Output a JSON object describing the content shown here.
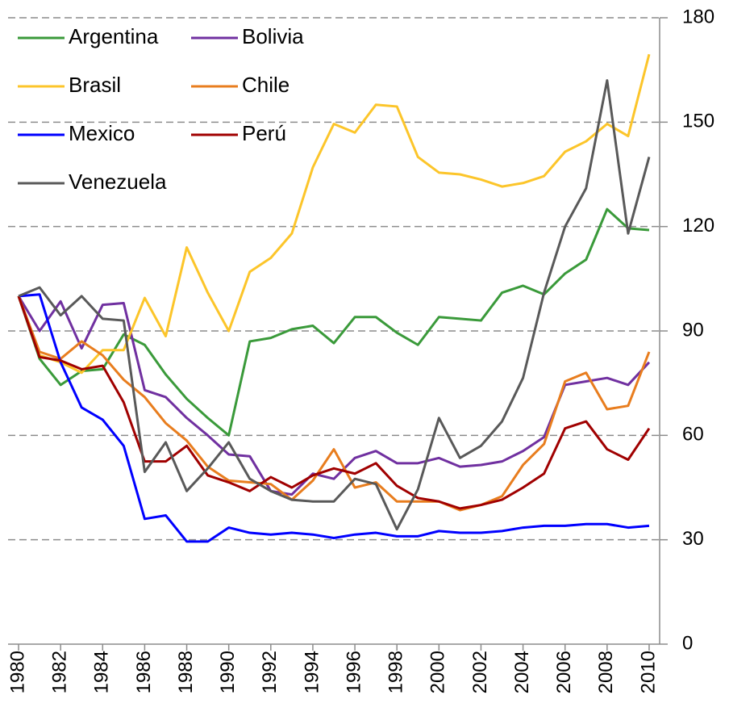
{
  "chart_data": {
    "type": "line",
    "x": [
      1980,
      1981,
      1982,
      1983,
      1984,
      1985,
      1986,
      1987,
      1988,
      1989,
      1990,
      1991,
      1992,
      1993,
      1994,
      1995,
      1996,
      1997,
      1998,
      1999,
      2000,
      2001,
      2002,
      2003,
      2004,
      2005,
      2006,
      2007,
      2008,
      2009,
      2010
    ],
    "xlim": [
      1979.5,
      2010.5
    ],
    "xticks": [
      1980,
      1982,
      1984,
      1986,
      1988,
      1990,
      1992,
      1994,
      1996,
      1998,
      2000,
      2002,
      2004,
      2006,
      2008,
      2010
    ],
    "ylim": [
      0,
      180
    ],
    "yticks": [
      0,
      30,
      60,
      90,
      120,
      150,
      180
    ],
    "grid": true,
    "y_axis_side": "right",
    "legend": "upper left",
    "series": [
      {
        "name": "Argentina",
        "color": "#3a9a3a",
        "values": [
          100,
          82,
          74.5,
          78.5,
          79,
          89,
          86,
          77.5,
          70.5,
          65,
          60,
          87,
          88,
          90.5,
          91.5,
          86.5,
          94,
          94,
          89.5,
          86,
          94,
          93.5,
          93,
          101,
          103,
          100.5,
          106.5,
          110.5,
          125,
          119.5,
          119
        ]
      },
      {
        "name": "Bolivia",
        "color": "#7030a0",
        "values": [
          100,
          90,
          98.5,
          85,
          97.5,
          98,
          73,
          71,
          65,
          60,
          54.5,
          54,
          44,
          43,
          49,
          47.5,
          53.5,
          55.5,
          52,
          52,
          53.5,
          51,
          51.5,
          52.5,
          55.5,
          59.5,
          74.5,
          75.5,
          76.5,
          74.5,
          81
        ]
      },
      {
        "name": "Brasil",
        "color": "#fcc52a",
        "values": [
          100,
          83,
          81,
          78,
          84.5,
          84.5,
          99.5,
          88.5,
          114,
          101,
          90,
          107,
          111,
          118,
          137,
          149.5,
          147,
          155,
          154.5,
          140,
          135.5,
          135,
          133.5,
          131.5,
          132.5,
          134.5,
          141.5,
          144.5,
          149.5,
          146,
          169.5
        ]
      },
      {
        "name": "Chile",
        "color": "#e87d1e",
        "values": [
          100,
          84,
          82,
          87,
          83,
          76,
          71,
          63.5,
          58.5,
          51,
          47,
          46.5,
          46,
          41.5,
          47,
          56,
          45,
          46.5,
          41,
          41,
          41,
          38.5,
          40,
          42.5,
          51.5,
          57.5,
          75.5,
          78,
          67.5,
          68.5,
          84
        ]
      },
      {
        "name": "Mexico",
        "color": "#0000ff",
        "values": [
          100,
          100.5,
          81,
          68,
          64.5,
          57,
          36,
          37,
          29.5,
          29.5,
          33.5,
          32,
          31.5,
          32,
          31.5,
          30.5,
          31.5,
          32,
          31,
          31,
          32.5,
          32,
          32,
          32.5,
          33.5,
          34,
          34,
          34.5,
          34.5,
          33.5,
          34
        ]
      },
      {
        "name": "Perú",
        "color": "#a00000",
        "values": [
          100,
          82.5,
          81.5,
          79,
          80,
          69.5,
          52.5,
          52.5,
          57,
          48.5,
          46.5,
          44,
          48,
          45,
          48.5,
          50.5,
          49,
          52,
          45.5,
          42,
          41,
          39,
          40,
          41.5,
          45,
          49,
          62,
          64,
          56,
          53,
          62
        ]
      },
      {
        "name": "Venezuela",
        "color": "#595959",
        "values": [
          100,
          102.5,
          94.5,
          100,
          93.5,
          93,
          49.5,
          58,
          44,
          50.5,
          58,
          47.5,
          44,
          41.5,
          41,
          41,
          47.5,
          46,
          33,
          44.5,
          65,
          53.5,
          57,
          64,
          76.5,
          101,
          120,
          131,
          162,
          118,
          140
        ]
      }
    ]
  }
}
